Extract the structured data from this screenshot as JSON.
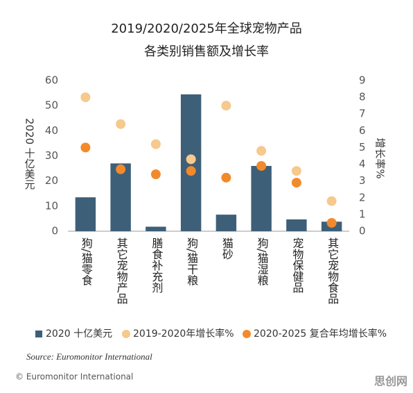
{
  "chart_data": {
    "type": "bar",
    "title": "2019/2020/2025年全球宠物产品",
    "subtitle": "各类别销售额及增长率",
    "y_label": "2020 十亿美元",
    "y2_label": "增长率%",
    "categories": [
      "狗/猫零食",
      "其它宠物产品",
      "膳食补充剂",
      "狗/猫干粮",
      "猫砂",
      "狗/猫湿粮",
      "宠物保健品",
      "其它宠物食品"
    ],
    "series": [
      {
        "name": "2020 十亿美元",
        "type": "bar",
        "color": "#3e5f78",
        "values": [
          13.5,
          27,
          1.8,
          54.5,
          6.6,
          26,
          4.7,
          3.8
        ]
      },
      {
        "name": "2019-2020年增长率%",
        "type": "scatter",
        "axis": "y2",
        "color": "#f6c98c",
        "values": [
          8.0,
          6.4,
          5.2,
          4.3,
          7.5,
          4.8,
          3.6,
          1.8
        ]
      },
      {
        "name": "2020-2025 复合年均增长率%",
        "type": "scatter",
        "axis": "y2",
        "color": "#f28a2c",
        "values": [
          5.0,
          3.7,
          3.4,
          3.6,
          3.2,
          3.9,
          2.9,
          0.5
        ]
      }
    ],
    "ylim": [
      0,
      60
    ],
    "yticks": [
      0,
      10,
      20,
      30,
      40,
      50,
      60
    ],
    "y2lim": [
      0,
      9
    ],
    "y2ticks": [
      0,
      1,
      2,
      3,
      4,
      5,
      6,
      7,
      8,
      9
    ],
    "grid": false,
    "source": "Source: Euromonitor International",
    "copyright": "© Euromonitor International",
    "watermark": "思创网"
  }
}
